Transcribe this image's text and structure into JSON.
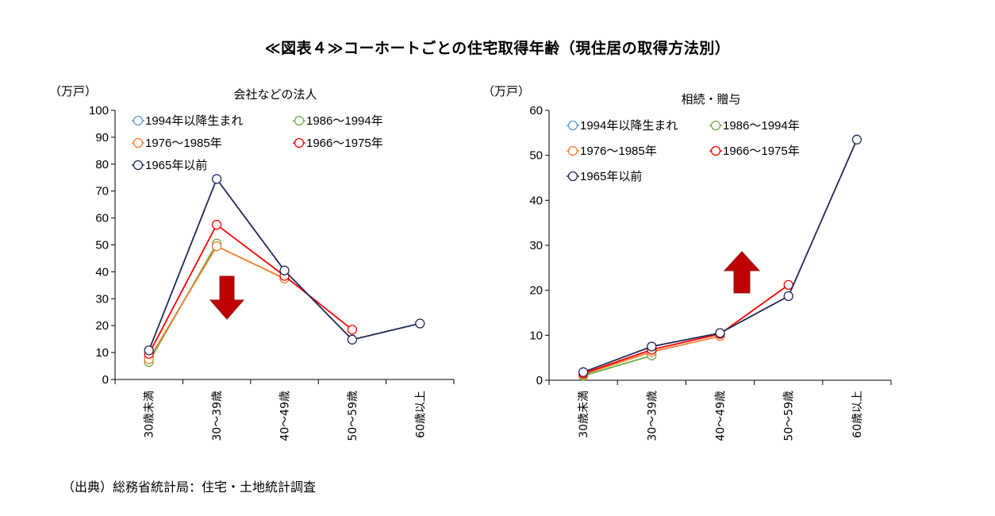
{
  "title": "≪図表４≫コーホートごとの住宅取得年齢（現住居の取得方法別）",
  "source": "（出典）総務省統計局：住宅・土地統計調査",
  "colors": {
    "1994年以降生まれ": "#5b9bd5",
    "1986〜1994年": "#70ad47",
    "1976〜1985年": "#ed7d31",
    "1966〜1975年": "#ff0000",
    "1965年以前": "#1f2a5a",
    "arrow": "#c00000"
  },
  "chart_data": [
    {
      "type": "line",
      "title": "会社などの法人",
      "ylabel": "（万戸）",
      "ylim": [
        0,
        100
      ],
      "yticks": [
        0,
        10,
        20,
        30,
        40,
        50,
        60,
        70,
        80,
        90,
        100
      ],
      "categories": [
        "30歳未満",
        "30〜39歳",
        "40〜49歳",
        "50〜59歳",
        "60歳以上"
      ],
      "legend_rows": [
        [
          "1994年以降生まれ",
          "1986〜1994年"
        ],
        [
          "1976〜1985年",
          "1966〜1975年"
        ],
        [
          "1965年以前"
        ]
      ],
      "arrow": "down",
      "series": [
        {
          "name": "1994年以降生まれ",
          "values": [
            8,
            null,
            null,
            null,
            null
          ]
        },
        {
          "name": "1986〜1994年",
          "values": [
            6.5,
            50.5,
            null,
            null,
            null
          ]
        },
        {
          "name": "1976〜1985年",
          "values": [
            7.5,
            49.5,
            37.5,
            null,
            null
          ]
        },
        {
          "name": "1966〜1975年",
          "values": [
            9.5,
            57.5,
            38.5,
            18.5,
            null
          ]
        },
        {
          "name": "1965年以前",
          "values": [
            10.8,
            74.5,
            40.5,
            14.8,
            20.8
          ]
        }
      ]
    },
    {
      "type": "line",
      "title": "相続・贈与",
      "ylabel": "（万戸）",
      "ylim": [
        0,
        60
      ],
      "yticks": [
        0,
        10,
        20,
        30,
        40,
        50,
        60
      ],
      "categories": [
        "30歳未満",
        "30〜39歳",
        "40〜49歳",
        "50〜59歳",
        "60歳以上"
      ],
      "legend_rows": [
        [
          "1994年以降生まれ",
          "1986〜1994年"
        ],
        [
          "1976〜1985年",
          "1966〜1975年"
        ],
        [
          "1965年以前"
        ]
      ],
      "arrow": "up",
      "series": [
        {
          "name": "1994年以降生まれ",
          "values": [
            1.2,
            null,
            null,
            null,
            null
          ]
        },
        {
          "name": "1986〜1994年",
          "values": [
            1.0,
            5.5,
            null,
            null,
            null
          ]
        },
        {
          "name": "1976〜1985年",
          "values": [
            1.3,
            6.3,
            9.8,
            null,
            null
          ]
        },
        {
          "name": "1966〜1975年",
          "values": [
            1.5,
            6.8,
            10.3,
            21.2,
            null
          ]
        },
        {
          "name": "1965年以前",
          "values": [
            1.8,
            7.5,
            10.5,
            18.7,
            53.5
          ]
        }
      ]
    }
  ]
}
